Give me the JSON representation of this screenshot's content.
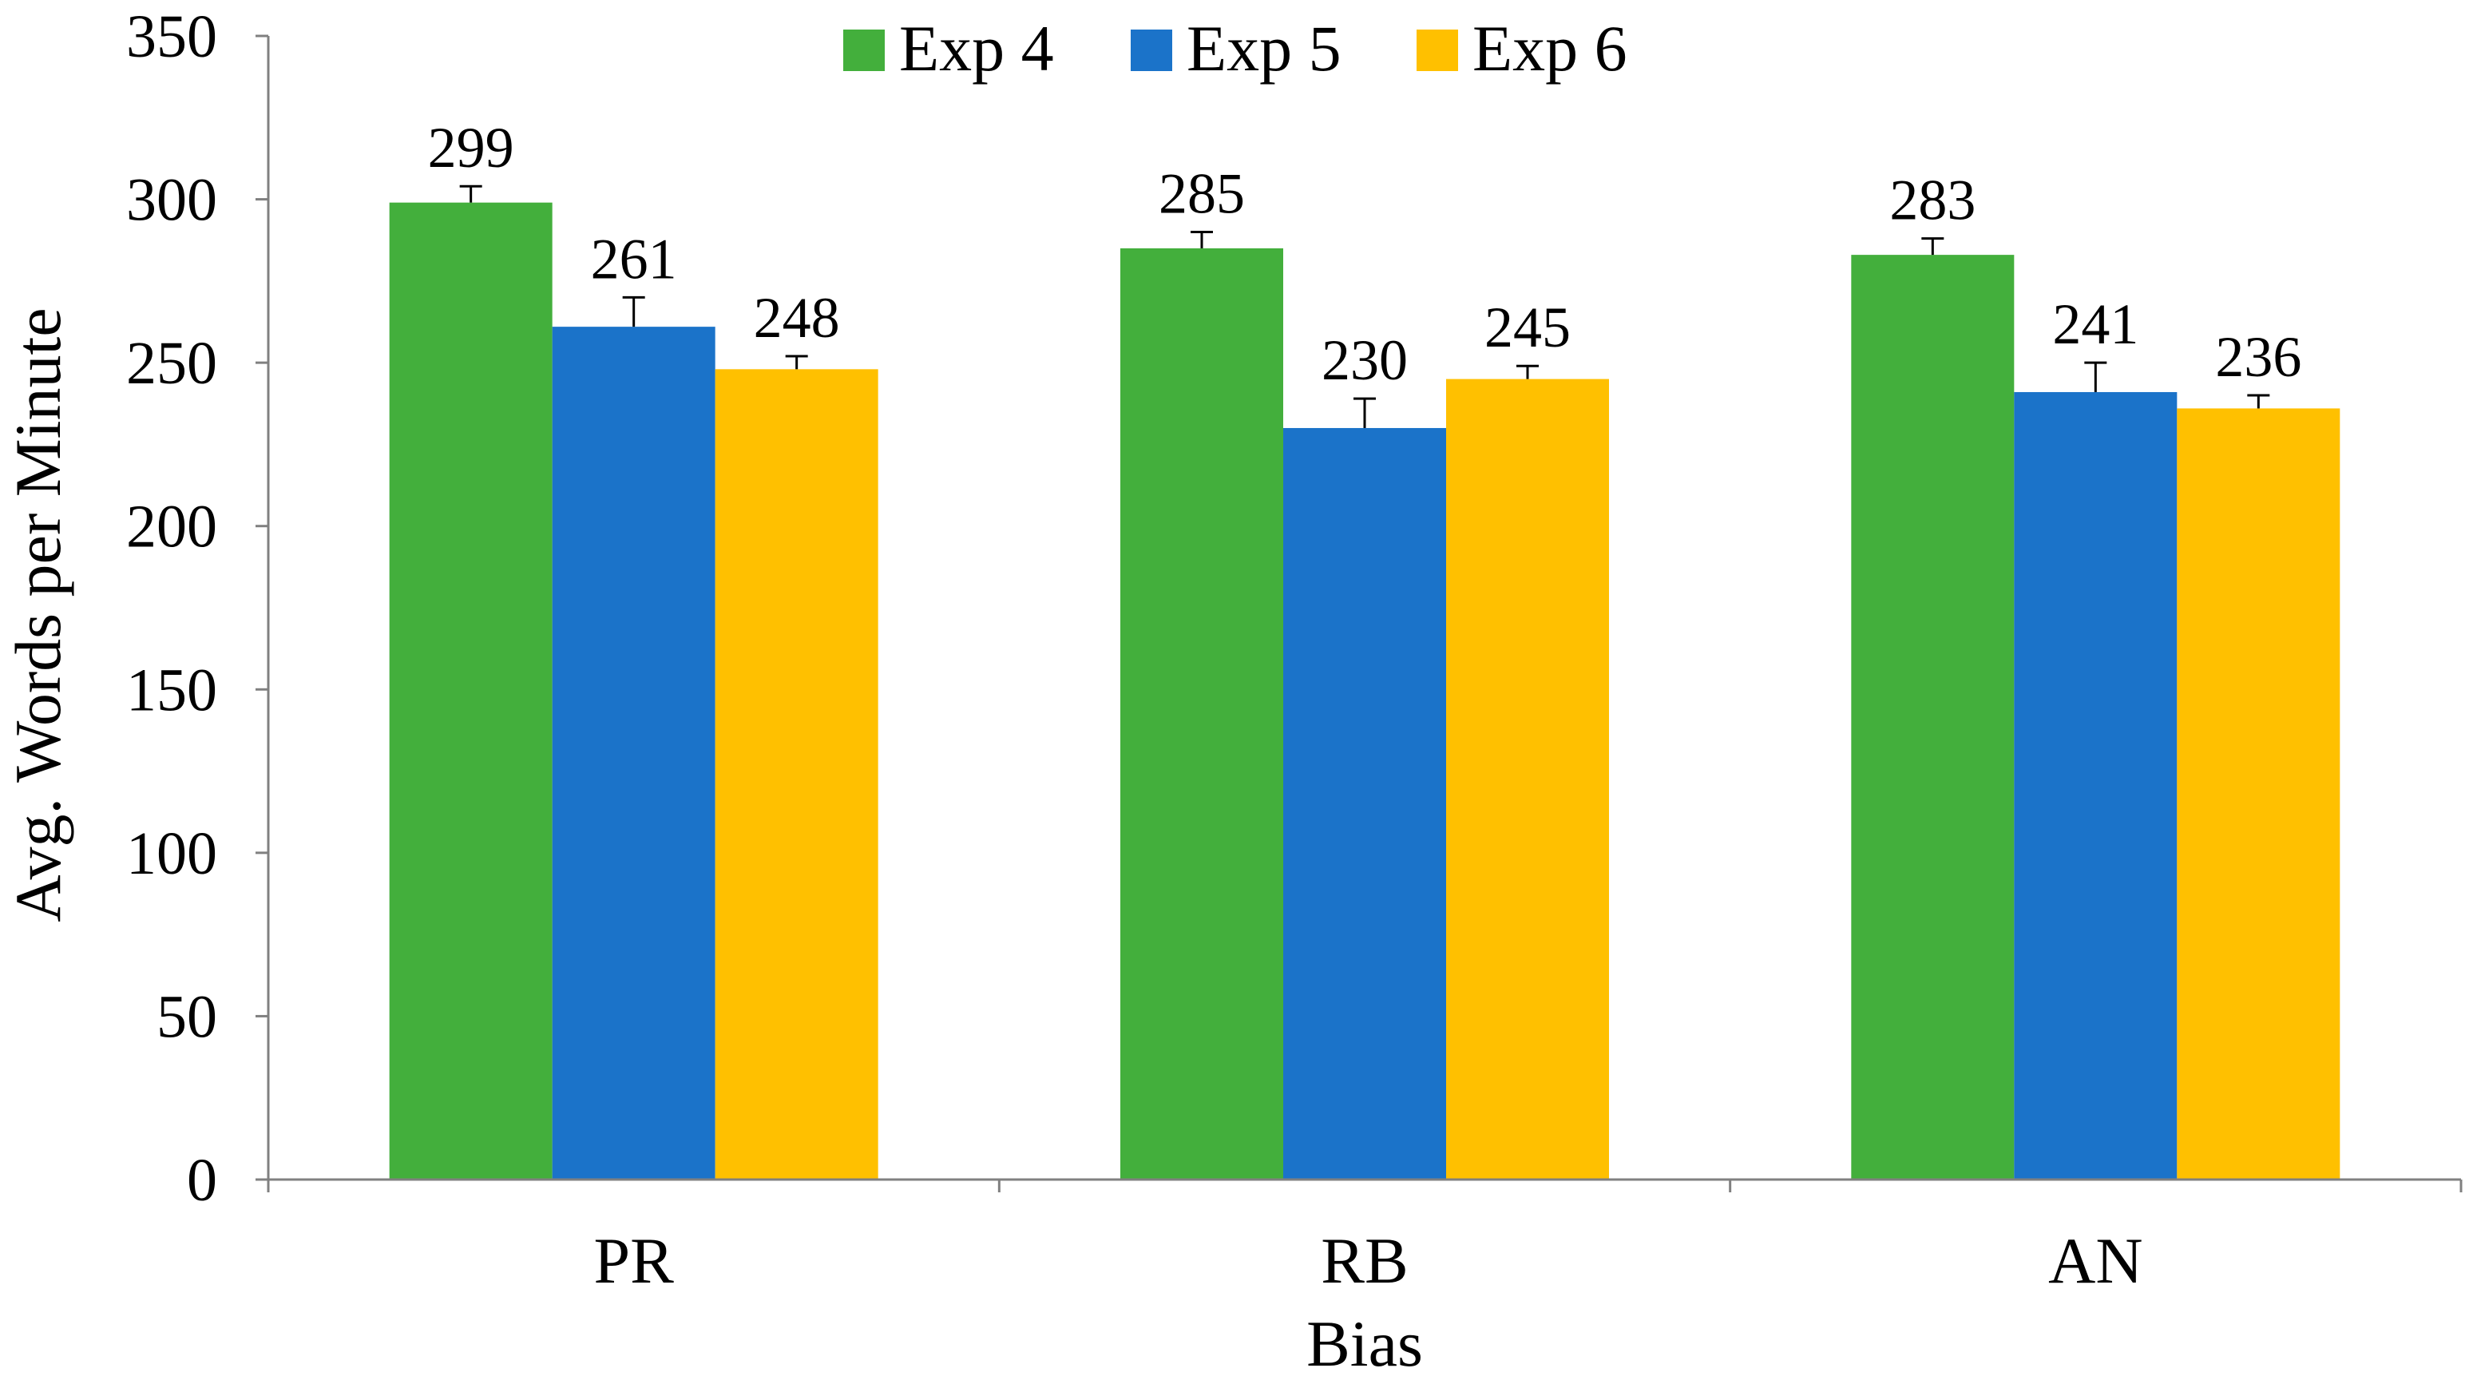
{
  "chart_data": {
    "type": "bar",
    "title": "",
    "xlabel": "Bias",
    "ylabel": "Avg. Words per Minute",
    "categories": [
      "PR",
      "RB",
      "AN"
    ],
    "ylim": [
      0,
      350
    ],
    "yticks": [
      0,
      50,
      100,
      150,
      200,
      250,
      300,
      350
    ],
    "ytick_labels": [
      "0",
      "50",
      "100",
      "150",
      "200",
      "250",
      "300",
      "350"
    ],
    "grid": false,
    "legend_position": "top-center",
    "series": [
      {
        "name": "Exp 4",
        "color": "#43AF3C",
        "values": [
          299,
          285,
          283
        ],
        "labels": [
          "299",
          "285",
          "283"
        ],
        "errors": [
          5,
          5,
          5
        ]
      },
      {
        "name": "Exp 5",
        "color": "#1B73C9",
        "values": [
          261,
          230,
          241
        ],
        "labels": [
          "261",
          "230",
          "241"
        ],
        "errors": [
          9,
          9,
          9
        ]
      },
      {
        "name": "Exp 6",
        "color": "#FFC000",
        "values": [
          248,
          245,
          236
        ],
        "labels": [
          "248",
          "245",
          "236"
        ],
        "errors": [
          4,
          4,
          4
        ]
      }
    ]
  }
}
